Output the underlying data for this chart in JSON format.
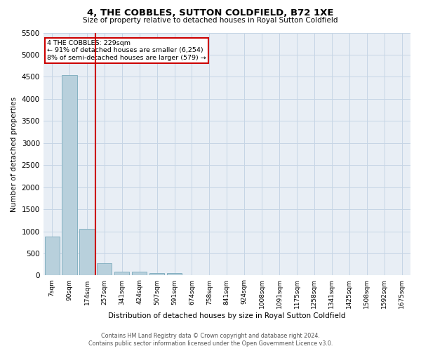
{
  "title": "4, THE COBBLES, SUTTON COLDFIELD, B72 1XE",
  "subtitle": "Size of property relative to detached houses in Royal Sutton Coldfield",
  "xlabel": "Distribution of detached houses by size in Royal Sutton Coldfield",
  "ylabel": "Number of detached properties",
  "footer_line1": "Contains HM Land Registry data © Crown copyright and database right 2024.",
  "footer_line2": "Contains public sector information licensed under the Open Government Licence v3.0.",
  "annotation_title": "4 THE COBBLES: 229sqm",
  "annotation_line1": "← 91% of detached houses are smaller (6,254)",
  "annotation_line2": "8% of semi-detached houses are larger (579) →",
  "property_bin_index": 2,
  "bar_categories": [
    "7sqm",
    "90sqm",
    "174sqm",
    "257sqm",
    "341sqm",
    "424sqm",
    "507sqm",
    "591sqm",
    "674sqm",
    "758sqm",
    "841sqm",
    "924sqm",
    "1008sqm",
    "1091sqm",
    "1175sqm",
    "1258sqm",
    "1341sqm",
    "1425sqm",
    "1508sqm",
    "1592sqm",
    "1675sqm"
  ],
  "bar_values": [
    880,
    4540,
    1060,
    280,
    90,
    80,
    55,
    50,
    0,
    0,
    0,
    0,
    0,
    0,
    0,
    0,
    0,
    0,
    0,
    0,
    0
  ],
  "bar_color": "#b8d0dc",
  "bar_edgecolor": "#7aaabb",
  "grid_color": "#c5d5e5",
  "bg_color": "#e8eef5",
  "vline_color": "#cc0000",
  "annotation_box_edgecolor": "#cc0000",
  "ylim": [
    0,
    5500
  ],
  "yticks": [
    0,
    500,
    1000,
    1500,
    2000,
    2500,
    3000,
    3500,
    4000,
    4500,
    5000,
    5500
  ]
}
